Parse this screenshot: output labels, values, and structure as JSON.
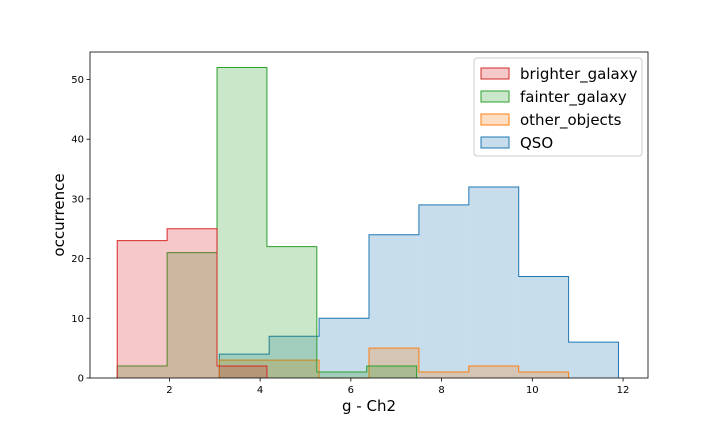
{
  "chart_data": {
    "type": "histogram",
    "xlabel": "g - Ch2",
    "ylabel": "occurrence",
    "xlim": [
      0.25,
      12.55
    ],
    "ylim": [
      0,
      54.6
    ],
    "x_ticks": [
      "2",
      "4",
      "6",
      "8",
      "10",
      "12"
    ],
    "y_ticks": [
      "0",
      "10",
      "20",
      "30",
      "40",
      "50"
    ],
    "legend_position": "top-right",
    "series": [
      {
        "name": "QSO",
        "color": "#1f77b4",
        "bin_edges": [
          3.1,
          4.2,
          5.3,
          6.4,
          7.5,
          8.6,
          9.7,
          10.8,
          11.9
        ],
        "counts": [
          4,
          7,
          10,
          24,
          29,
          32,
          17,
          6
        ]
      },
      {
        "name": "other_objects",
        "color": "#ff7f0e",
        "bin_edges": [
          3.1,
          4.2,
          5.3,
          6.4,
          7.5,
          8.6,
          9.7,
          10.8
        ],
        "counts": [
          3,
          3,
          0,
          5,
          1,
          2,
          1
        ]
      },
      {
        "name": "fainter_galaxy",
        "color": "#2ca02c",
        "bin_edges": [
          0.85,
          1.95,
          3.05,
          4.15,
          5.25,
          6.35,
          7.45
        ],
        "counts": [
          2,
          21,
          52,
          22,
          1,
          2
        ]
      },
      {
        "name": "brighter_galaxy",
        "color": "#d62728",
        "bin_edges": [
          0.85,
          1.95,
          3.05,
          4.15
        ],
        "counts": [
          23,
          25,
          2
        ]
      }
    ],
    "legend_order": [
      "brighter_galaxy",
      "fainter_galaxy",
      "other_objects",
      "QSO"
    ]
  }
}
